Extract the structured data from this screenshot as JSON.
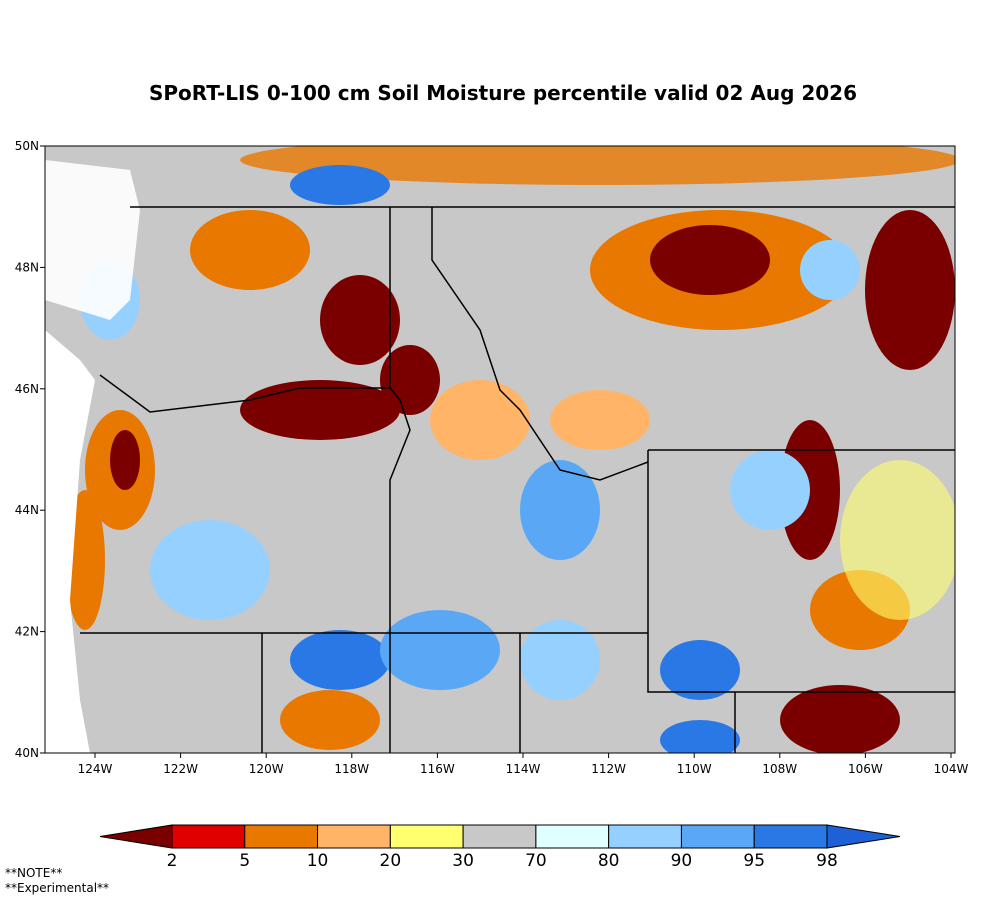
{
  "title": "SPoRT-LIS 0-100 cm Soil Moisture percentile valid 02 Aug 2026",
  "lat_labels": [
    "50N",
    "48N",
    "46N",
    "44N",
    "42N",
    "40N"
  ],
  "lon_labels": [
    "124W",
    "122W",
    "120W",
    "118W",
    "116W",
    "114W",
    "112W",
    "110W",
    "108W",
    "106W",
    "104W"
  ],
  "colorbar": {
    "labels": [
      "2",
      "5",
      "10",
      "20",
      "30",
      "70",
      "80",
      "90",
      "95",
      "98"
    ],
    "colors": [
      "#7a0000",
      "#e00000",
      "#e87800",
      "#ffb468",
      "#ffff70",
      "#c8c8c8",
      "#e0ffff",
      "#96d0ff",
      "#5aa8f5",
      "#2a78e6",
      "#1e60d6"
    ]
  },
  "notes": [
    "**NOTE**",
    "**Experimental**"
  ]
}
